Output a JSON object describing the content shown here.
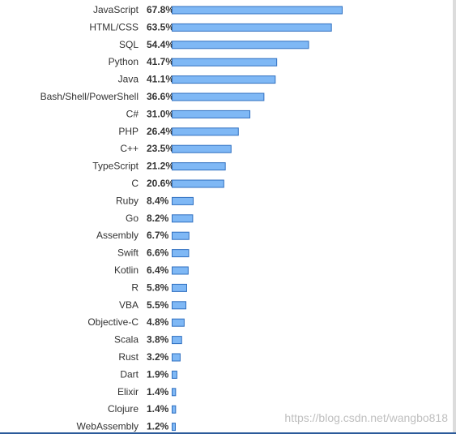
{
  "chart_data": {
    "type": "bar",
    "orientation": "horizontal",
    "categories": [
      "JavaScript",
      "HTML/CSS",
      "SQL",
      "Python",
      "Java",
      "Bash/Shell/PowerShell",
      "C#",
      "PHP",
      "C++",
      "TypeScript",
      "C",
      "Ruby",
      "Go",
      "Assembly",
      "Swift",
      "Kotlin",
      "R",
      "VBA",
      "Objective-C",
      "Scala",
      "Rust",
      "Dart",
      "Elixir",
      "Clojure",
      "WebAssembly"
    ],
    "values": [
      67.8,
      63.5,
      54.4,
      41.7,
      41.1,
      36.6,
      31.0,
      26.4,
      23.5,
      21.2,
      20.6,
      8.4,
      8.2,
      6.7,
      6.6,
      6.4,
      5.8,
      5.5,
      4.8,
      3.8,
      3.2,
      1.9,
      1.4,
      1.4,
      1.2
    ],
    "value_labels": [
      "67.8%",
      "63.5%",
      "54.4%",
      "41.7%",
      "41.1%",
      "36.6%",
      "31.0%",
      "26.4%",
      "23.5%",
      "21.2%",
      "20.6%",
      "8.4%",
      "8.2%",
      "6.7%",
      "6.6%",
      "6.4%",
      "5.8%",
      "5.5%",
      "4.8%",
      "3.8%",
      "3.2%",
      "1.9%",
      "1.4%",
      "1.4%",
      "1.2%"
    ],
    "title": "",
    "xlabel": "",
    "ylabel": "",
    "xlim": [
      0,
      67.8
    ],
    "grid": false,
    "bar_color": "#7fb8f5",
    "bar_edge_color": "#2f6fc0"
  },
  "watermark": "https://blog.csdn.net/wangbo818"
}
